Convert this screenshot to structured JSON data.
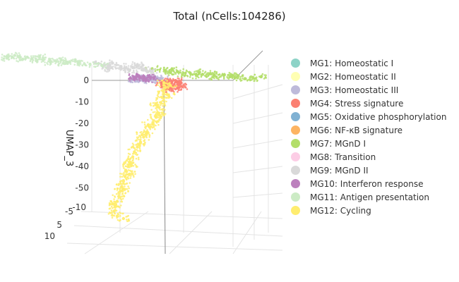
{
  "chart_data": {
    "type": "scatter",
    "title": "Total (nCells:104286)",
    "zlabel": "UMAP_3",
    "z_ticks": [
      "0",
      "-10",
      "-20",
      "-30",
      "-40",
      "-50"
    ],
    "y_ticks": [
      "-10",
      "-5",
      "5",
      "10"
    ],
    "zlim": [
      -60,
      5
    ],
    "legend_position": "right",
    "series": [
      {
        "name": "MG1: Homeostatic I",
        "color": "#8dd3c7",
        "points": []
      },
      {
        "name": "MG2: Homeostatic II",
        "color": "#ffffb3",
        "points": []
      },
      {
        "name": "MG3: Homeostatic III",
        "color": "#bebada",
        "points": [
          [
            -1.2,
            0.2
          ],
          [
            -0.9,
            0.3
          ],
          [
            -0.5,
            0.1
          ],
          [
            -0.2,
            -0.1
          ],
          [
            -1.5,
            -0.2
          ],
          [
            -0.7,
            -0.4
          ],
          [
            -1.1,
            -0.6
          ],
          [
            -0.3,
            0.4
          ],
          [
            0.1,
            0.2
          ],
          [
            -1.8,
            0.1
          ],
          [
            -0.6,
            0.6
          ],
          [
            -1.3,
            0.5
          ]
        ]
      },
      {
        "name": "MG4: Stress signature",
        "color": "#fb8072",
        "points": [
          [
            0.2,
            -1.2
          ],
          [
            0.4,
            -2.0
          ],
          [
            0.6,
            -1.5
          ],
          [
            0.9,
            -2.6
          ],
          [
            1.1,
            -1.0
          ],
          [
            0.3,
            -3.2
          ],
          [
            0.7,
            -3.8
          ],
          [
            1.0,
            -0.5
          ],
          [
            0.5,
            -0.8
          ],
          [
            1.3,
            -1.8
          ],
          [
            0.8,
            -4.5
          ],
          [
            1.4,
            -2.9
          ],
          [
            0.1,
            -2.2
          ],
          [
            1.2,
            -3.5
          ]
        ]
      },
      {
        "name": "MG5: Oxidative phosphorylation",
        "color": "#80b1d3",
        "points": []
      },
      {
        "name": "MG6: NF-κB signature",
        "color": "#fdb462",
        "points": []
      },
      {
        "name": "MG7: MGnD I",
        "color": "#b3de69",
        "points": [
          [
            1.5,
            4.5
          ],
          [
            2.0,
            3.8
          ],
          [
            2.5,
            3.2
          ],
          [
            3.0,
            2.6
          ],
          [
            3.5,
            2.0
          ],
          [
            4.0,
            1.5
          ],
          [
            4.5,
            1.0
          ],
          [
            5.0,
            0.6
          ],
          [
            5.5,
            0.2
          ],
          [
            2.2,
            2.0
          ],
          [
            2.8,
            1.4
          ],
          [
            3.4,
            0.9
          ],
          [
            1.8,
            2.8
          ],
          [
            4.2,
            2.4
          ],
          [
            4.8,
            1.8
          ],
          [
            3.8,
            3.0
          ],
          [
            6.0,
            0.4
          ],
          [
            6.5,
            1.0
          ],
          [
            5.2,
            1.6
          ],
          [
            2.6,
            4.2
          ]
        ]
      },
      {
        "name": "MG8: Transition",
        "color": "#fccde5",
        "points": []
      },
      {
        "name": "MG9: MGnD II",
        "color": "#d9d9d9",
        "points": [
          [
            -0.5,
            6.0
          ],
          [
            0.0,
            5.5
          ],
          [
            0.5,
            5.0
          ],
          [
            1.0,
            4.5
          ],
          [
            -1.0,
            5.2
          ],
          [
            -0.2,
            4.6
          ],
          [
            0.6,
            4.0
          ],
          [
            -0.8,
            6.8
          ],
          [
            0.2,
            7.0
          ],
          [
            1.2,
            5.8
          ],
          [
            -1.4,
            4.4
          ],
          [
            0.9,
            3.4
          ],
          [
            -0.3,
            3.8
          ],
          [
            1.5,
            6.4
          ]
        ]
      },
      {
        "name": "MG10: Interferon response",
        "color": "#bc80bd",
        "points": [
          [
            -1.0,
            0.5
          ],
          [
            -1.3,
            0.8
          ],
          [
            -0.7,
            0.9
          ],
          [
            -1.6,
            0.4
          ],
          [
            -0.4,
            0.7
          ],
          [
            -1.1,
            1.2
          ],
          [
            -0.9,
            -0.3
          ],
          [
            -1.7,
            1.0
          ]
        ]
      },
      {
        "name": "MG11: Antigen presentation",
        "color": "#ccebc5",
        "points": [
          [
            -5.0,
            10.0
          ],
          [
            -4.5,
            9.5
          ],
          [
            -4.0,
            9.0
          ],
          [
            -3.5,
            8.5
          ],
          [
            -3.0,
            8.0
          ],
          [
            -2.5,
            7.5
          ],
          [
            -2.0,
            7.0
          ],
          [
            -1.5,
            6.5
          ],
          [
            -1.0,
            6.0
          ],
          [
            -4.8,
            8.6
          ],
          [
            -4.2,
            8.0
          ],
          [
            -3.6,
            7.4
          ],
          [
            -3.0,
            6.8
          ],
          [
            -5.5,
            9.2
          ],
          [
            -2.4,
            8.4
          ],
          [
            -1.8,
            7.8
          ],
          [
            -6.0,
            10.5
          ],
          [
            -5.8,
            11.2
          ],
          [
            -4.4,
            10.4
          ],
          [
            -3.2,
            9.6
          ]
        ]
      },
      {
        "name": "MG12: Cycling",
        "color": "#ffed6f",
        "points": [
          [
            0.0,
            -1
          ],
          [
            0.1,
            -3
          ],
          [
            0.0,
            -5
          ],
          [
            -0.1,
            -7
          ],
          [
            -0.2,
            -9
          ],
          [
            -0.3,
            -11
          ],
          [
            -0.4,
            -13
          ],
          [
            -0.5,
            -15
          ],
          [
            -0.7,
            -17
          ],
          [
            -0.9,
            -19
          ],
          [
            -1.1,
            -21
          ],
          [
            -1.3,
            -23
          ],
          [
            -1.5,
            -25
          ],
          [
            -1.7,
            -27
          ],
          [
            -1.9,
            -29
          ],
          [
            -2.0,
            -31
          ],
          [
            -2.2,
            -33
          ],
          [
            -2.3,
            -35
          ],
          [
            -2.4,
            -37
          ],
          [
            -2.5,
            -39
          ],
          [
            -2.6,
            -41
          ],
          [
            -2.7,
            -43
          ],
          [
            -2.8,
            -45
          ],
          [
            -2.9,
            -47
          ],
          [
            -3.0,
            -49
          ],
          [
            -3.1,
            -51
          ],
          [
            -3.2,
            -53
          ],
          [
            -3.0,
            -55
          ],
          [
            -2.6,
            -56
          ],
          [
            0.3,
            -6
          ],
          [
            -0.5,
            -10
          ],
          [
            -1.0,
            -18
          ],
          [
            -1.6,
            -26
          ],
          [
            -2.1,
            -34
          ],
          [
            -2.6,
            -44
          ],
          [
            -3.3,
            -50
          ],
          [
            0.4,
            -2
          ],
          [
            -0.3,
            -14
          ],
          [
            -1.4,
            -22
          ],
          [
            -2.2,
            -38
          ]
        ]
      }
    ]
  }
}
